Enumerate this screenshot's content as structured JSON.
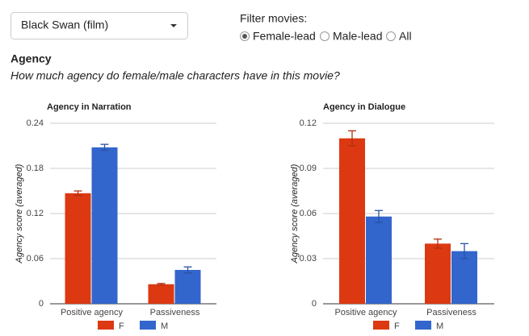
{
  "controls": {
    "dropdown": "Black Swan (film)",
    "filter_label": "Filter movies:",
    "options": [
      {
        "label": "Female-lead",
        "checked": true
      },
      {
        "label": "Male-lead",
        "checked": false
      },
      {
        "label": "All",
        "checked": false
      }
    ],
    "heading": "Agency",
    "question": "How much agency do female/male characters have in this movie?"
  },
  "chart_data": [
    {
      "type": "bar",
      "title": "Agency in Narration",
      "y_label": "Agency score (averaged)",
      "categories": [
        "Positive agency",
        "Passiveness"
      ],
      "series": [
        {
          "name": "F",
          "color": "#dc3912",
          "values": [
            0.147,
            0.026
          ],
          "errors": [
            0.003,
            0.001
          ]
        },
        {
          "name": "M",
          "color": "#3366cc",
          "values": [
            0.208,
            0.045
          ],
          "errors": [
            0.004,
            0.004
          ]
        }
      ],
      "ylim": [
        0,
        0.24
      ],
      "yticks": [
        0,
        0.06,
        0.12,
        0.18,
        0.24
      ],
      "grid": true
    },
    {
      "type": "bar",
      "title": "Agency in Dialogue",
      "y_label": "Agency score (averaged)",
      "categories": [
        "Positive agency",
        "Passiveness"
      ],
      "series": [
        {
          "name": "F",
          "color": "#dc3912",
          "values": [
            0.11,
            0.04
          ],
          "errors": [
            0.005,
            0.003
          ]
        },
        {
          "name": "M",
          "color": "#3366cc",
          "values": [
            0.058,
            0.035
          ],
          "errors": [
            0.004,
            0.005
          ]
        }
      ],
      "ylim": [
        0,
        0.12
      ],
      "yticks": [
        0,
        0.03,
        0.06,
        0.09,
        0.12
      ],
      "grid": true
    }
  ]
}
